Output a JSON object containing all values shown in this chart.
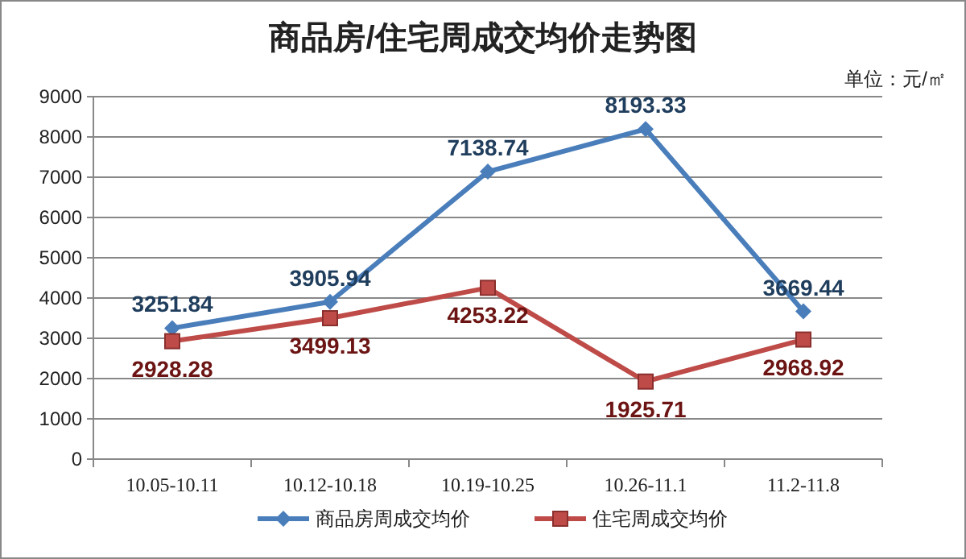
{
  "chart_data": {
    "type": "line",
    "title": "商品房/住宅周成交均价走势图",
    "annotations": [
      "单位：元/㎡"
    ],
    "categories": [
      "10.05-10.11",
      "10.12-10.18",
      "10.19-10.25",
      "10.26-11.1",
      "11.2-11.8"
    ],
    "series": [
      {
        "name": "商品房周成交均价",
        "color": "#4a7ebb",
        "marker": "diamond",
        "values": [
          3251.84,
          3905.94,
          7138.74,
          8193.33,
          3669.44
        ]
      },
      {
        "name": "住宅周成交均价",
        "color": "#be4b48",
        "marker": "square",
        "values": [
          2928.28,
          3499.13,
          4253.22,
          1925.71,
          2968.92
        ]
      }
    ],
    "ylim": [
      0,
      9000
    ],
    "yticks": [
      0,
      1000,
      2000,
      3000,
      4000,
      5000,
      6000,
      7000,
      8000,
      9000
    ],
    "grid": "y",
    "legend": "bottom",
    "data_labels": true
  }
}
